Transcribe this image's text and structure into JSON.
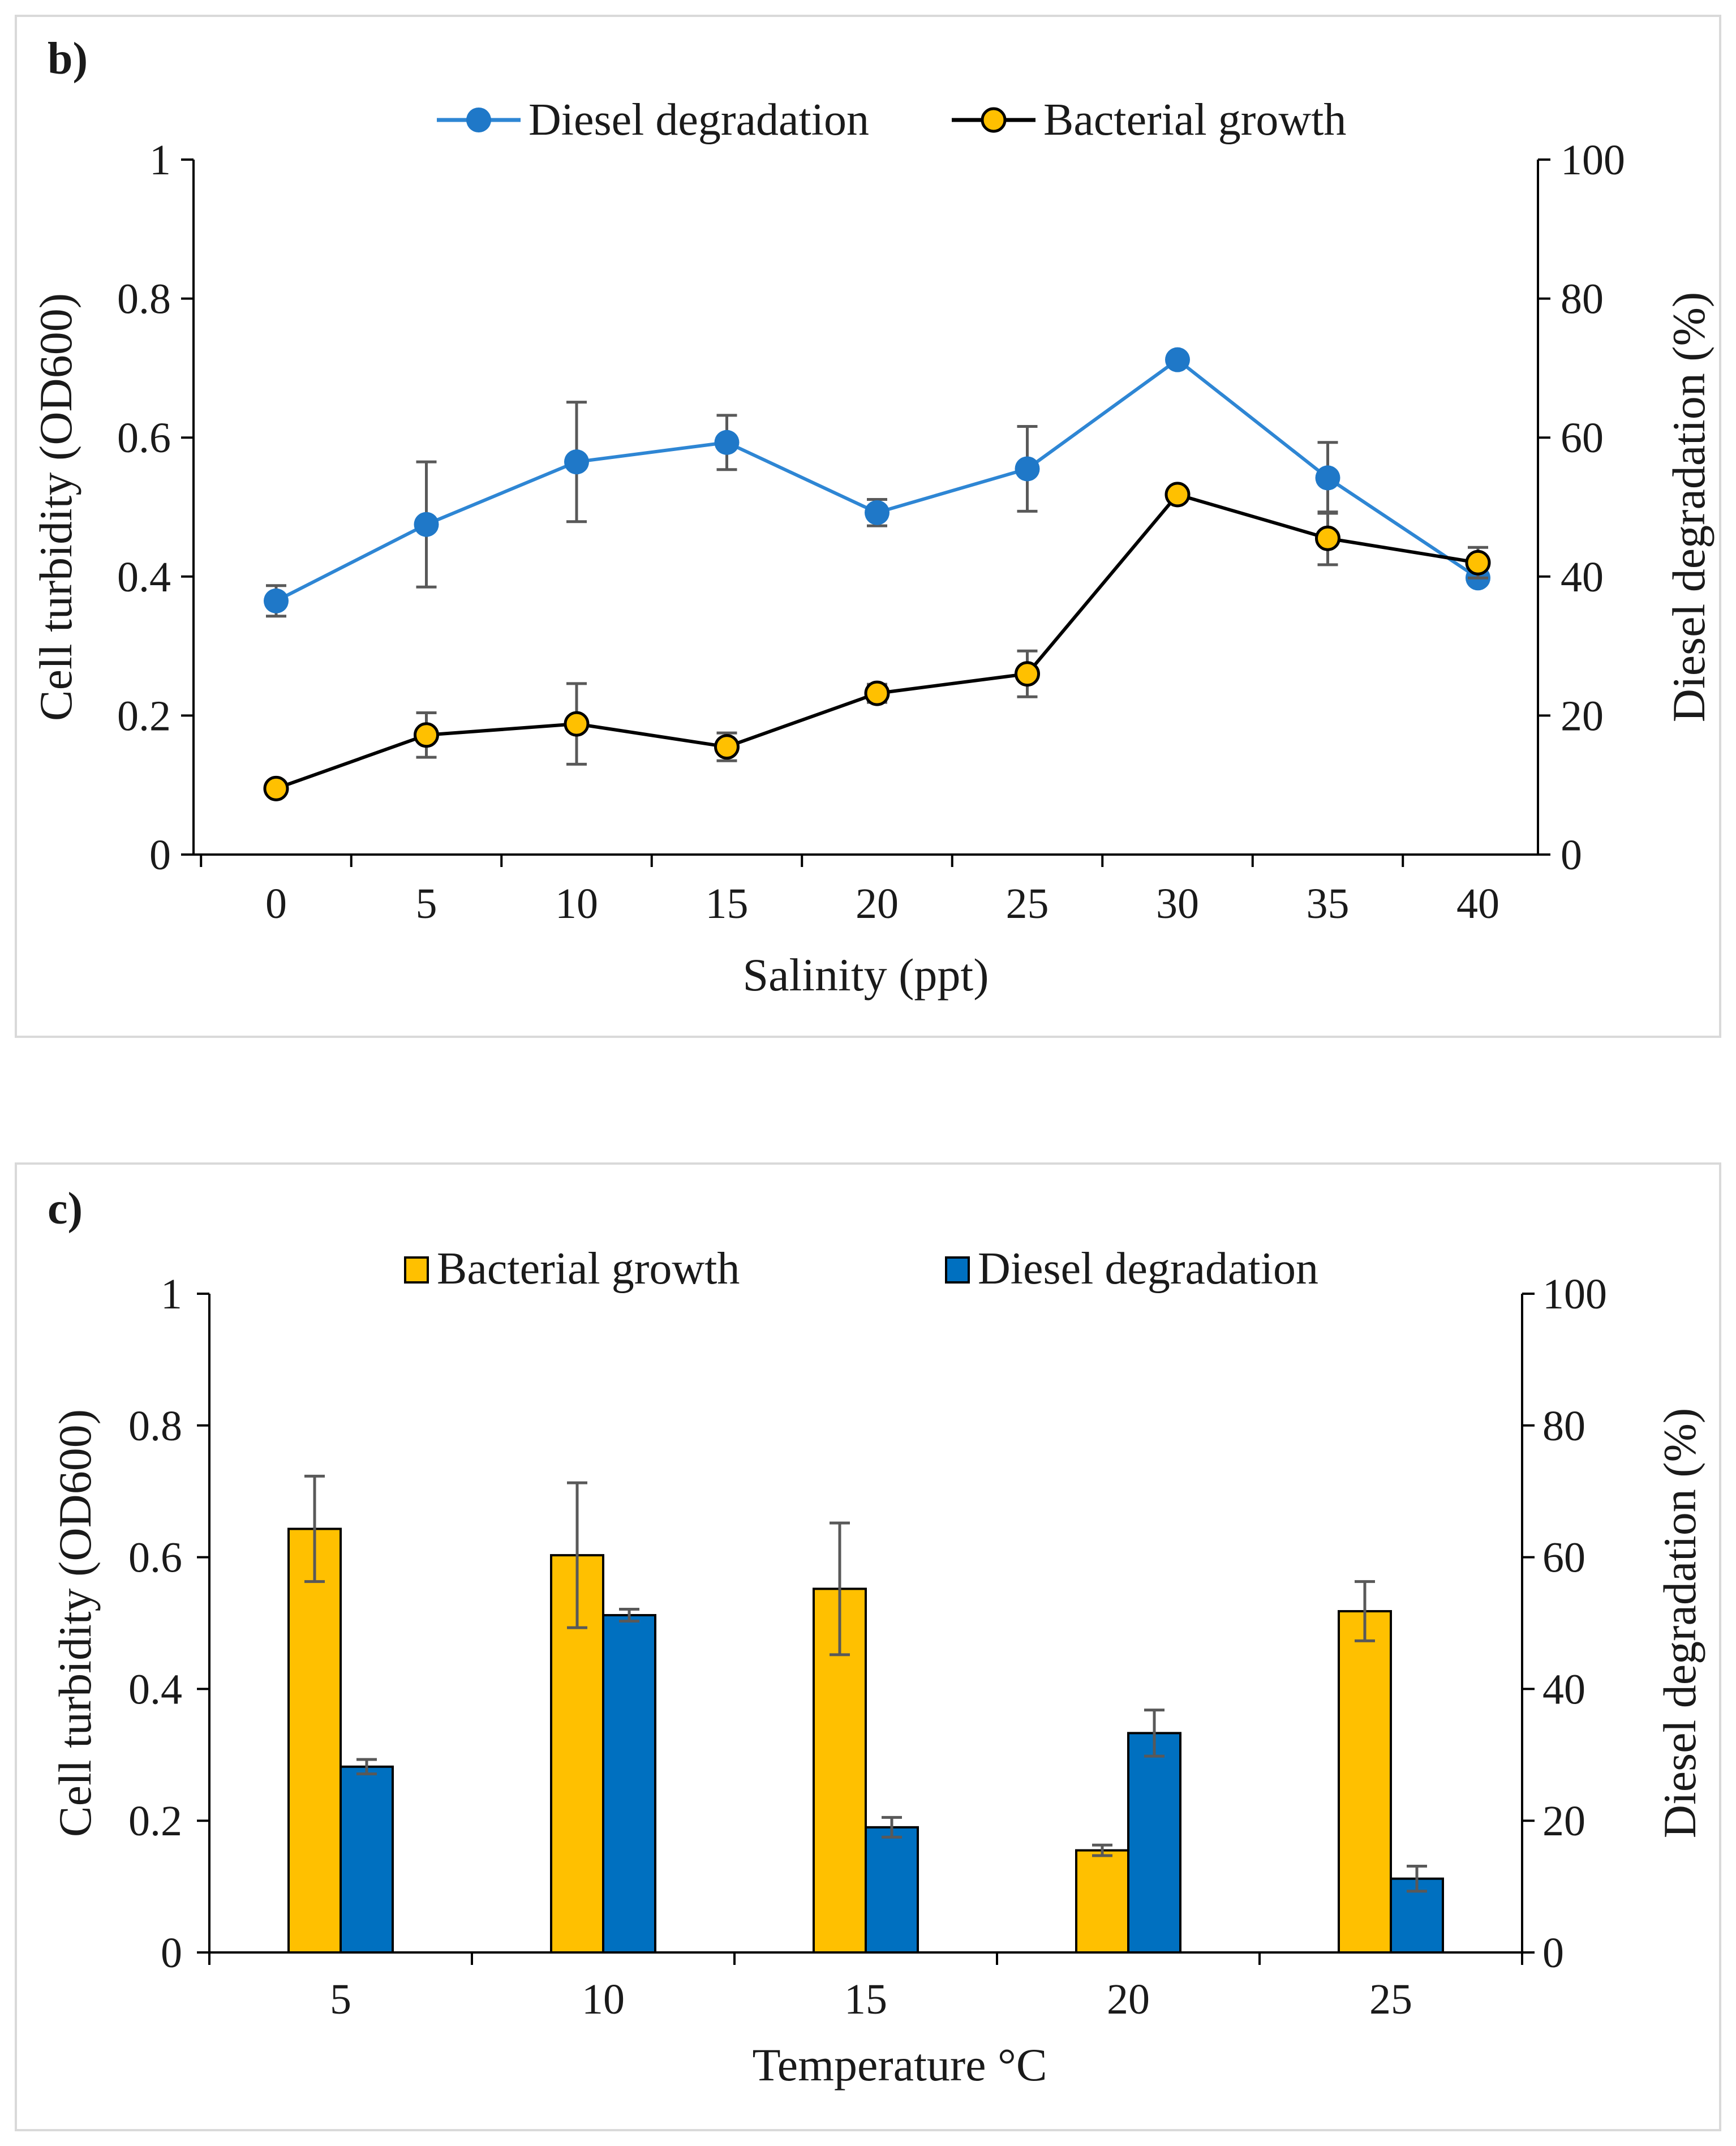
{
  "chart_data": [
    {
      "type": "line",
      "panel_label": "b)",
      "xlabel": "Salinity (ppt)",
      "ylabel": "Cell turbidity (OD600)",
      "y2label": "Diesel degradation  (%)",
      "x": [
        0,
        5,
        10,
        15,
        20,
        25,
        30,
        35,
        40
      ],
      "x_tick_labels": [
        "0",
        "5",
        "10",
        "15",
        "20",
        "25",
        "30",
        "35",
        "40"
      ],
      "ylim": [
        0,
        1
      ],
      "y_ticks": [
        "0",
        "0.2",
        "0.4",
        "0.6",
        "0.8",
        "1"
      ],
      "y2lim": [
        0,
        100
      ],
      "y2_ticks": [
        "0",
        "20",
        "40",
        "60",
        "80",
        "100"
      ],
      "legend_position": "top-center",
      "series": [
        {
          "name": "Diesel degradation",
          "axis": "right",
          "color": "#1f78c8",
          "marker_fill": "#1f78c8",
          "line_color": "#2e86d4",
          "values": [
            36.5,
            47.5,
            56.5,
            59.3,
            49.2,
            55.5,
            71.2,
            54.2,
            39.8
          ],
          "errors": [
            2.2,
            9.0,
            8.6,
            3.9,
            1.9,
            6.1,
            0,
            5.1,
            0
          ]
        },
        {
          "name": "Bacterial growth",
          "axis": "left",
          "color": "#000000",
          "marker_fill": "#ffc000",
          "line_color": "#000000",
          "values": [
            0.095,
            0.172,
            0.188,
            0.155,
            0.232,
            0.26,
            0.518,
            0.455,
            0.42
          ],
          "errors": [
            0,
            0.032,
            0.058,
            0.02,
            0.013,
            0.033,
            0,
            0.038,
            0.022
          ]
        }
      ]
    },
    {
      "type": "bar",
      "panel_label": "c)",
      "xlabel": "Temperature °C",
      "ylabel": "Cell turbidity (OD600)",
      "y2label": "Diesel degradation (%)",
      "categories": [
        "5",
        "10",
        "15",
        "20",
        "25"
      ],
      "ylim": [
        0,
        1
      ],
      "y_ticks": [
        "0",
        "0.2",
        "0.4",
        "0.6",
        "0.8",
        "1"
      ],
      "y2lim": [
        0,
        100
      ],
      "y2_ticks": [
        "0",
        "20",
        "40",
        "60",
        "80",
        "100"
      ],
      "legend_position": "top-center",
      "series": [
        {
          "name": "Bacterial growth",
          "axis": "left",
          "color": "#ffc000",
          "values": [
            0.643,
            0.603,
            0.552,
            0.155,
            0.518
          ],
          "errors": [
            0.08,
            0.11,
            0.1,
            0.008,
            0.045
          ]
        },
        {
          "name": "Diesel degradation",
          "axis": "right",
          "color": "#0070c0",
          "values": [
            28.2,
            51.2,
            19.0,
            33.3,
            11.2
          ],
          "errors": [
            1.1,
            0.9,
            1.5,
            3.5,
            1.9
          ]
        }
      ]
    }
  ]
}
